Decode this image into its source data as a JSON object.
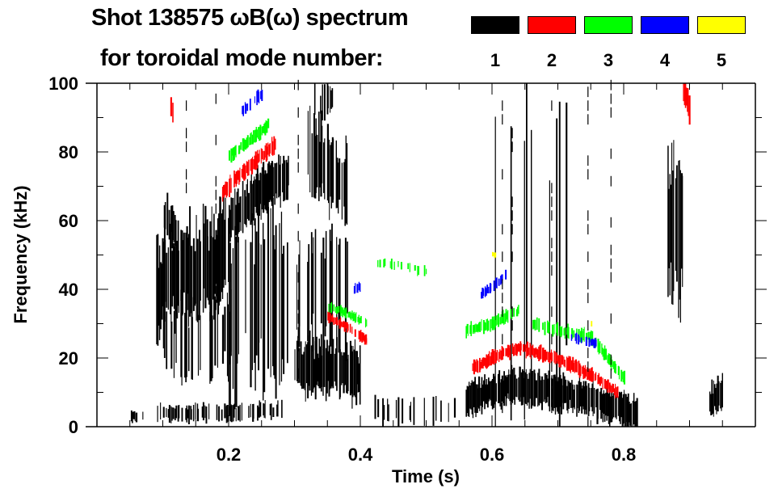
{
  "chart_data": {
    "type": "heatmap",
    "title": "Shot 138575 ωB(ω) spectrum",
    "subtitle": "for toroidal mode number:",
    "xlabel": "Time (s)",
    "ylabel": "Frequency (kHz)",
    "xlim": [
      0,
      1.0
    ],
    "ylim": [
      0,
      100
    ],
    "xticks": [
      0.2,
      0.4,
      0.6,
      0.8
    ],
    "xtick_labels": [
      "0.2",
      "0.4",
      "0.6",
      "0.8"
    ],
    "yticks": [
      0,
      20,
      40,
      60,
      80,
      100
    ],
    "ytick_labels": [
      "0",
      "20",
      "40",
      "60",
      "80",
      "100"
    ],
    "legend": [
      {
        "mode": "1",
        "color": "#000000"
      },
      {
        "mode": "2",
        "color": "#ff0000"
      },
      {
        "mode": "3",
        "color": "#00ff00"
      },
      {
        "mode": "4",
        "color": "#0000ff"
      },
      {
        "mode": "5",
        "color": "#ffff00"
      }
    ],
    "legend_placement": "top-right",
    "features": [
      {
        "mode": 1,
        "points": [
          [
            0.05,
            3
          ],
          [
            0.07,
            3
          ]
        ],
        "halfwidth": 1.5,
        "density": 0.6
      },
      {
        "mode": 1,
        "points": [
          [
            0.09,
            4
          ],
          [
            0.2,
            4
          ],
          [
            0.28,
            5
          ]
        ],
        "halfwidth": 2.5,
        "density": 0.5
      },
      {
        "mode": 1,
        "points": [
          [
            0.09,
            40
          ],
          [
            0.12,
            45
          ],
          [
            0.15,
            45
          ],
          [
            0.18,
            48
          ],
          [
            0.2,
            55
          ]
        ],
        "halfwidth": 15,
        "density": 0.85
      },
      {
        "mode": 1,
        "points": [
          [
            0.1,
            62
          ],
          [
            0.12,
            58
          ]
        ],
        "halfwidth": 6,
        "density": 0.7
      },
      {
        "mode": 1,
        "points": [
          [
            0.09,
            25
          ],
          [
            0.18,
            25
          ],
          [
            0.22,
            30
          ]
        ],
        "halfwidth": 12,
        "density": 0.45
      },
      {
        "mode": 1,
        "points": [
          [
            0.2,
            60
          ],
          [
            0.23,
            65
          ],
          [
            0.26,
            70
          ],
          [
            0.29,
            73
          ]
        ],
        "halfwidth": 7,
        "density": 0.9
      },
      {
        "mode": 1,
        "points": [
          [
            0.2,
            35
          ],
          [
            0.29,
            40
          ]
        ],
        "halfwidth": 25,
        "density": 0.4
      },
      {
        "mode": 1,
        "points": [
          [
            0.3,
            18
          ],
          [
            0.35,
            17
          ],
          [
            0.4,
            15
          ]
        ],
        "halfwidth": 8,
        "density": 0.9
      },
      {
        "mode": 1,
        "points": [
          [
            0.3,
            40
          ],
          [
            0.38,
            40
          ]
        ],
        "halfwidth": 18,
        "density": 0.3
      },
      {
        "mode": 1,
        "points": [
          [
            0.32,
            80
          ],
          [
            0.35,
            75
          ],
          [
            0.38,
            70
          ]
        ],
        "halfwidth": 12,
        "density": 0.65
      },
      {
        "mode": 1,
        "points": [
          [
            0.33,
            95
          ],
          [
            0.36,
            95
          ]
        ],
        "halfwidth": 5,
        "density": 0.4
      },
      {
        "mode": 1,
        "points": [
          [
            0.56,
            8
          ],
          [
            0.6,
            10
          ],
          [
            0.64,
            12
          ],
          [
            0.7,
            10
          ],
          [
            0.76,
            7
          ],
          [
            0.82,
            4
          ]
        ],
        "halfwidth": 5,
        "density": 0.9
      },
      {
        "mode": 1,
        "points": [
          [
            0.6,
            50
          ],
          [
            0.72,
            50
          ]
        ],
        "halfwidth": 50,
        "density": 0.06
      },
      {
        "mode": 1,
        "points": [
          [
            0.865,
            60
          ],
          [
            0.89,
            55
          ]
        ],
        "halfwidth": 22,
        "density": 0.8
      },
      {
        "mode": 1,
        "points": [
          [
            0.93,
            7
          ],
          [
            0.95,
            10
          ]
        ],
        "halfwidth": 5,
        "density": 0.8
      },
      {
        "mode": 1,
        "points": [
          [
            0.42,
            5
          ],
          [
            0.55,
            5
          ]
        ],
        "halfwidth": 4,
        "density": 0.2
      },
      {
        "mode": 2,
        "points": [
          [
            0.19,
            68
          ],
          [
            0.22,
            74
          ],
          [
            0.25,
            79
          ],
          [
            0.27,
            82
          ]
        ],
        "halfwidth": 2.5,
        "density": 0.9
      },
      {
        "mode": 2,
        "points": [
          [
            0.11,
            95
          ],
          [
            0.12,
            85
          ]
        ],
        "halfwidth": 4,
        "density": 0.3
      },
      {
        "mode": 2,
        "points": [
          [
            0.35,
            32
          ],
          [
            0.38,
            29
          ],
          [
            0.41,
            25
          ]
        ],
        "halfwidth": 1.5,
        "density": 0.85
      },
      {
        "mode": 2,
        "points": [
          [
            0.57,
            17
          ],
          [
            0.6,
            20
          ],
          [
            0.64,
            23
          ],
          [
            0.68,
            21
          ],
          [
            0.72,
            18
          ],
          [
            0.76,
            14
          ],
          [
            0.79,
            10
          ]
        ],
        "halfwidth": 2,
        "density": 0.9
      },
      {
        "mode": 2,
        "points": [
          [
            0.89,
            98
          ],
          [
            0.9,
            92
          ]
        ],
        "halfwidth": 4,
        "density": 0.8
      },
      {
        "mode": 3,
        "points": [
          [
            0.2,
            79
          ],
          [
            0.23,
            83
          ],
          [
            0.26,
            88
          ]
        ],
        "halfwidth": 2,
        "density": 0.85
      },
      {
        "mode": 3,
        "points": [
          [
            0.35,
            35
          ],
          [
            0.38,
            33
          ],
          [
            0.41,
            30
          ]
        ],
        "halfwidth": 1.5,
        "density": 0.6
      },
      {
        "mode": 3,
        "points": [
          [
            0.42,
            48
          ],
          [
            0.46,
            47
          ],
          [
            0.5,
            45
          ]
        ],
        "halfwidth": 1.5,
        "density": 0.3
      },
      {
        "mode": 3,
        "points": [
          [
            0.56,
            28
          ],
          [
            0.6,
            30
          ],
          [
            0.64,
            34
          ]
        ],
        "halfwidth": 2,
        "density": 0.75
      },
      {
        "mode": 3,
        "points": [
          [
            0.66,
            30
          ],
          [
            0.7,
            28
          ],
          [
            0.75,
            26
          ],
          [
            0.8,
            14
          ]
        ],
        "halfwidth": 2,
        "density": 0.6
      },
      {
        "mode": 4,
        "points": [
          [
            0.22,
            92
          ],
          [
            0.25,
            97
          ]
        ],
        "halfwidth": 2,
        "density": 0.6
      },
      {
        "mode": 4,
        "points": [
          [
            0.39,
            40
          ],
          [
            0.4,
            41
          ]
        ],
        "halfwidth": 1.5,
        "density": 0.7
      },
      {
        "mode": 4,
        "points": [
          [
            0.58,
            38
          ],
          [
            0.62,
            44
          ]
        ],
        "halfwidth": 1.5,
        "density": 0.6
      },
      {
        "mode": 4,
        "points": [
          [
            0.72,
            26
          ],
          [
            0.76,
            24
          ]
        ],
        "halfwidth": 1.5,
        "density": 0.5
      },
      {
        "mode": 5,
        "points": [
          [
            0.6,
            50
          ],
          [
            0.605,
            50
          ]
        ],
        "halfwidth": 1,
        "density": 0.8
      },
      {
        "mode": 5,
        "points": [
          [
            0.75,
            30
          ],
          [
            0.755,
            30
          ]
        ],
        "halfwidth": 1,
        "density": 0.8
      }
    ],
    "vertical_lines": [
      {
        "mode": 1,
        "t": 0.615,
        "f": [
          0,
          100
        ]
      },
      {
        "mode": 1,
        "t": 0.63,
        "f": [
          0,
          100
        ]
      },
      {
        "mode": 1,
        "t": 0.69,
        "f": [
          0,
          95
        ]
      },
      {
        "mode": 1,
        "t": 0.745,
        "f": [
          0,
          100
        ]
      },
      {
        "mode": 1,
        "t": 0.78,
        "f": [
          10,
          100
        ]
      },
      {
        "mode": 1,
        "t": 0.135,
        "f": [
          20,
          100
        ]
      },
      {
        "mode": 1,
        "t": 0.18,
        "f": [
          30,
          100
        ]
      },
      {
        "mode": 1,
        "t": 0.305,
        "f": [
          10,
          100
        ]
      }
    ]
  }
}
